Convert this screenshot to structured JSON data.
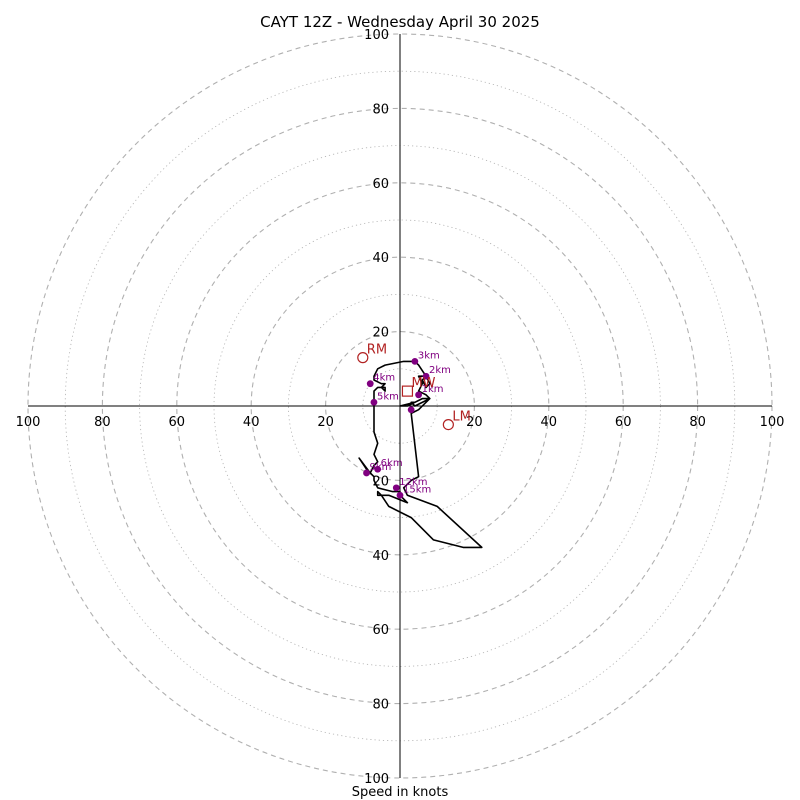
{
  "chart_data": {
    "type": "hodograph",
    "title": "CAYT 12Z - Wednesday April 30 2025",
    "xlabel": "Speed in knots",
    "axis_range": [
      -100,
      100
    ],
    "ring_major_step": 20,
    "ring_minor_step": 10,
    "tick_labels": [
      "100",
      "80",
      "60",
      "40",
      "20"
    ],
    "colors": {
      "hodograph_line": "#000000",
      "height_markers": "#800080",
      "storm_motion": "#b22222",
      "grid": "#b0b0b0"
    },
    "hodograph_trace_uv": [
      [
        0,
        0
      ],
      [
        4,
        1
      ],
      [
        6,
        2
      ],
      [
        8,
        2
      ],
      [
        7,
        3
      ],
      [
        5,
        4
      ],
      [
        6,
        6
      ],
      [
        5,
        8
      ],
      [
        7,
        8
      ],
      [
        8,
        6
      ],
      [
        7,
        5
      ],
      [
        6,
        7
      ],
      [
        7,
        8
      ],
      [
        5,
        11
      ],
      [
        4,
        12
      ],
      [
        1,
        12
      ],
      [
        -4,
        11
      ],
      [
        -6,
        10
      ],
      [
        -7,
        8
      ],
      [
        -7,
        7
      ],
      [
        -5,
        6
      ],
      [
        -4,
        6
      ],
      [
        -5,
        5
      ],
      [
        -4,
        4
      ],
      [
        -4,
        5
      ],
      [
        -6,
        5
      ],
      [
        -7,
        4
      ],
      [
        -7,
        2
      ],
      [
        -7,
        1
      ],
      [
        -7,
        -1
      ],
      [
        -7,
        -4
      ],
      [
        -7,
        -7
      ],
      [
        -6,
        -10
      ],
      [
        -7,
        -13
      ],
      [
        -6,
        -15
      ],
      [
        -7,
        -16
      ],
      [
        -8,
        -18
      ],
      [
        -11,
        -14
      ],
      [
        -9,
        -17
      ],
      [
        -7,
        -19
      ],
      [
        -7,
        -20
      ],
      [
        -6,
        -22
      ],
      [
        -2,
        -23
      ],
      [
        0,
        -23
      ],
      [
        0,
        -24
      ],
      [
        2,
        -26
      ],
      [
        -3,
        -24
      ],
      [
        -6,
        -24
      ],
      [
        -6,
        -23
      ],
      [
        -5,
        -24
      ],
      [
        -3,
        -27
      ],
      [
        3,
        -30
      ],
      [
        9,
        -36
      ],
      [
        17,
        -38
      ],
      [
        22,
        -38
      ],
      [
        10,
        -27
      ],
      [
        2,
        -24
      ],
      [
        1,
        -22
      ],
      [
        3,
        -20
      ],
      [
        5,
        -19
      ],
      [
        3,
        -2
      ],
      [
        5,
        -1
      ],
      [
        8,
        2
      ],
      [
        4,
        0
      ],
      [
        3,
        1
      ],
      [
        4,
        1
      ],
      [
        2,
        0
      ],
      [
        0,
        0
      ]
    ],
    "height_markers": [
      {
        "label": "1km",
        "u": 5,
        "v": 3
      },
      {
        "label": "2km",
        "u": 7,
        "v": 8
      },
      {
        "label": "3km",
        "u": 4,
        "v": 12
      },
      {
        "label": "4km",
        "u": -8,
        "v": 6
      },
      {
        "label": "5km",
        "u": -7,
        "v": 1
      },
      {
        "label": "6km",
        "u": -6,
        "v": -17
      },
      {
        "label": "9km",
        "u": -9,
        "v": -18
      },
      {
        "label": "12km",
        "u": -1,
        "v": -22
      },
      {
        "label": "15km",
        "u": 0,
        "v": -24
      },
      {
        "label": "",
        "u": 3,
        "v": -1
      }
    ],
    "storm_motion": [
      {
        "label": "RM",
        "u": -10,
        "v": 13
      },
      {
        "label": "LM",
        "u": 13,
        "v": -5
      },
      {
        "label": "MW",
        "u": 2,
        "v": 4
      }
    ]
  }
}
